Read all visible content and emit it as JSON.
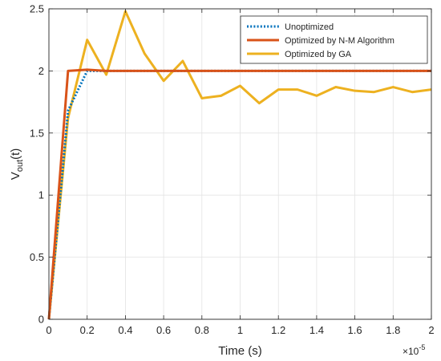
{
  "chart_data": {
    "type": "line",
    "xlabel": "Time (s)",
    "ylabel_main": "V",
    "ylabel_sub": "out",
    "ylabel_tail": "(t)",
    "x_multiplier_base": "×10",
    "x_multiplier_exp": "-5",
    "xlim": [
      0,
      2
    ],
    "ylim": [
      0,
      2.5
    ],
    "x_ticks": [
      0,
      0.2,
      0.4,
      0.6,
      0.8,
      1,
      1.2,
      1.4,
      1.6,
      1.8,
      2
    ],
    "x_tick_labels": [
      "0",
      "0.2",
      "0.4",
      "0.6",
      "0.8",
      "1",
      "1.2",
      "1.4",
      "1.6",
      "1.8",
      "2"
    ],
    "y_ticks": [
      0,
      0.5,
      1,
      1.5,
      2,
      2.5
    ],
    "y_tick_labels": [
      "0",
      "0.5",
      "1",
      "1.5",
      "2",
      "2.5"
    ],
    "grid": true,
    "legend_position": "top-right",
    "series": [
      {
        "name": "Unoptimized",
        "color": "#0072BD",
        "style": "dotted",
        "x": [
          0,
          0.1,
          0.2,
          0.3,
          0.4,
          0.5,
          0.6,
          0.7,
          0.8,
          0.9,
          1.0,
          1.1,
          1.2,
          1.3,
          1.4,
          1.5,
          1.6,
          1.7,
          1.8,
          1.9,
          2.0
        ],
        "y": [
          0,
          1.68,
          2.0,
          2.0,
          2.0,
          2.0,
          2.0,
          2.0,
          2.0,
          2.0,
          2.0,
          2.0,
          2.0,
          2.0,
          2.0,
          2.0,
          2.0,
          2.0,
          2.0,
          2.0,
          2.0
        ]
      },
      {
        "name": "Optimized by N-M Algorithm",
        "color": "#D95319",
        "style": "solid",
        "x": [
          0,
          0.1,
          0.2,
          0.3,
          0.4,
          0.5,
          0.6,
          0.7,
          0.8,
          0.9,
          1.0,
          1.1,
          1.2,
          1.3,
          1.4,
          1.5,
          1.6,
          1.7,
          1.8,
          1.9,
          2.0
        ],
        "y": [
          0,
          2.0,
          2.01,
          2.0,
          2.0,
          2.0,
          2.0,
          2.0,
          2.0,
          2.0,
          2.0,
          2.0,
          2.0,
          2.0,
          2.0,
          2.0,
          2.0,
          2.0,
          2.0,
          2.0,
          2.0
        ]
      },
      {
        "name": "Optimized by GA",
        "color": "#EDB120",
        "style": "solid",
        "x": [
          0,
          0.1,
          0.2,
          0.3,
          0.4,
          0.5,
          0.6,
          0.7,
          0.8,
          0.9,
          1.0,
          1.1,
          1.2,
          1.3,
          1.4,
          1.5,
          1.6,
          1.7,
          1.8,
          1.9,
          2.0
        ],
        "y": [
          0,
          1.62,
          2.25,
          1.97,
          2.48,
          2.14,
          1.92,
          2.08,
          1.78,
          1.8,
          1.88,
          1.74,
          1.85,
          1.85,
          1.8,
          1.87,
          1.84,
          1.83,
          1.87,
          1.83,
          1.85
        ]
      }
    ]
  }
}
